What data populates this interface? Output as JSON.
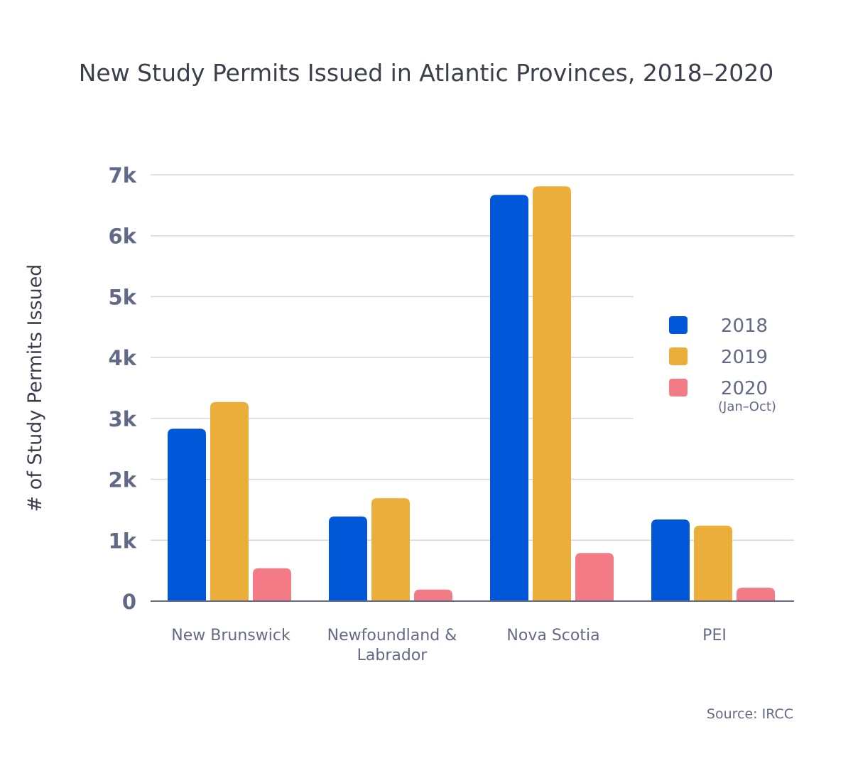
{
  "chart_data": {
    "type": "bar",
    "title": "New Study Permits Issued in Atlantic Provinces, 2018–2020",
    "xlabel": "",
    "ylabel": "# of Study Permits Issued",
    "ylim": [
      0,
      7000
    ],
    "yticks": [
      0,
      1000,
      2000,
      3000,
      4000,
      5000,
      6000,
      7000
    ],
    "ytick_labels": [
      "0",
      "1k",
      "2k",
      "3k",
      "4k",
      "5k",
      "6k",
      "7k"
    ],
    "grid": true,
    "legend_position": "right",
    "categories": [
      [
        "New Brunswick"
      ],
      [
        "Newfoundland &",
        "Labrador"
      ],
      [
        "Nova Scotia"
      ],
      [
        "PEI"
      ]
    ],
    "series": [
      {
        "name": "2018",
        "sub": "",
        "color": "#0057d8",
        "values": [
          2830,
          1390,
          6670,
          1340
        ]
      },
      {
        "name": "2019",
        "sub": "",
        "color": "#ecae3b",
        "values": [
          3270,
          1690,
          6810,
          1240
        ]
      },
      {
        "name": "2020",
        "sub": "(Jan–Oct)",
        "color": "#f37b85",
        "values": [
          540,
          190,
          790,
          220
        ]
      }
    ],
    "source": "Source: IRCC"
  }
}
